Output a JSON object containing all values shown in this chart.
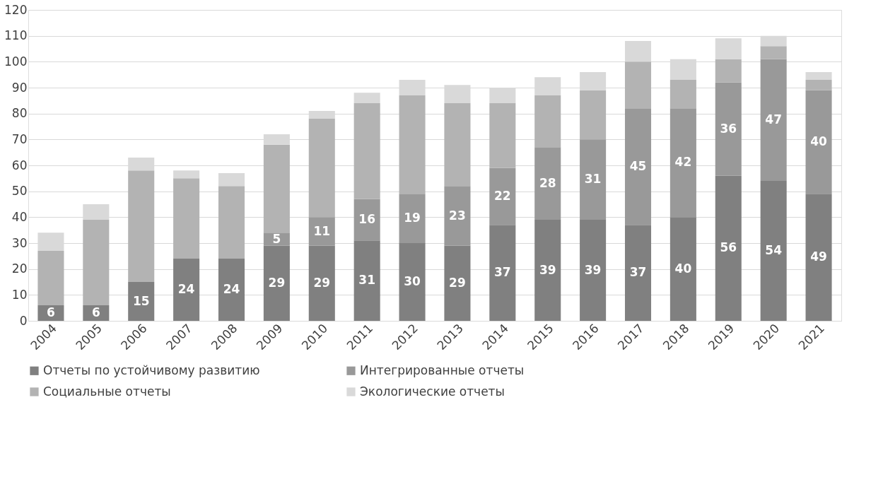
{
  "chart_data": {
    "type": "bar",
    "stacked": true,
    "categories": [
      "2004",
      "2005",
      "2006",
      "2007",
      "2008",
      "2009",
      "2010",
      "2011",
      "2012",
      "2013",
      "2014",
      "2015",
      "2016",
      "2017",
      "2018",
      "2019",
      "2020",
      "2021"
    ],
    "series": [
      {
        "name": "Отчеты по устойчивому развитию",
        "color": "#808080",
        "values": [
          6,
          6,
          15,
          24,
          24,
          29,
          29,
          31,
          30,
          29,
          37,
          39,
          39,
          37,
          40,
          56,
          54,
          49
        ],
        "value_labels": [
          "6",
          "6",
          "15",
          "24",
          "24",
          "29",
          "29",
          "31",
          "30",
          "29",
          "37",
          "39",
          "39",
          "37",
          "40",
          "56",
          "54",
          "49"
        ]
      },
      {
        "name": "Интегрированные отчеты",
        "color": "#999999",
        "values": [
          0,
          0,
          0,
          0,
          0,
          5,
          11,
          16,
          19,
          23,
          22,
          28,
          31,
          45,
          42,
          36,
          47,
          40
        ],
        "value_labels": [
          null,
          null,
          null,
          null,
          null,
          "5",
          "11",
          "16",
          "19",
          "23",
          "22",
          "28",
          "31",
          "45",
          "42",
          "36",
          "47",
          "40"
        ]
      },
      {
        "name": "Социальные отчеты",
        "color": "#b3b3b3",
        "values": [
          21,
          33,
          43,
          31,
          28,
          34,
          38,
          37,
          38,
          32,
          25,
          20,
          19,
          18,
          11,
          9,
          5,
          4
        ]
      },
      {
        "name": "Экологические отчеты",
        "color": "#d9d9d9",
        "values": [
          7,
          6,
          5,
          3,
          5,
          4,
          3,
          4,
          6,
          7,
          6,
          7,
          7,
          8,
          8,
          8,
          4,
          3
        ]
      }
    ],
    "ylim": [
      0,
      120
    ],
    "yticks": [
      0,
      10,
      20,
      30,
      40,
      50,
      60,
      70,
      80,
      90,
      100,
      110,
      120
    ],
    "grid": "y",
    "legend": "bottom"
  }
}
